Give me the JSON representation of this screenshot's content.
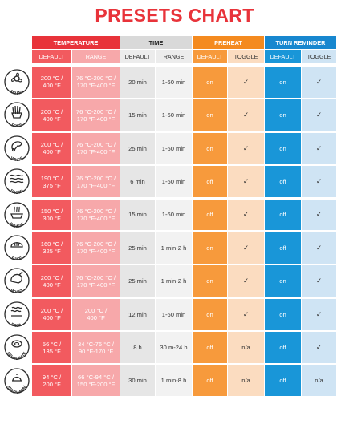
{
  "title": "PRESETS CHART",
  "colors": {
    "title": "#e8333a",
    "temp_header": "#e8333a",
    "temp_default": "#f25a5f",
    "temp_range": "#f7a8aa",
    "time_header": "#d9d9d9",
    "time_sub": "#ececec",
    "time_default": "#e6e6e6",
    "time_range": "#f2f2f2",
    "preheat_header": "#f48a1f",
    "preheat_default": "#f79a3c",
    "preheat_toggle": "#fbdcc0",
    "turn_header": "#1787cf",
    "turn_default": "#1996d8",
    "turn_toggle": "#cfe4f4",
    "icon": "#2a2a2a"
  },
  "headers": {
    "groups": [
      "TEMPERATURE",
      "TIME",
      "PREHEAT",
      "TURN REMINDER"
    ],
    "subs": [
      "DEFAULT",
      "RANGE",
      "DEFAULT",
      "RANGE",
      "DEFAULT",
      "TOGGLE",
      "DEFAULT",
      "TOGGLE"
    ]
  },
  "rows": [
    {
      "preset": "AIR FRY",
      "icon": "fan-icon",
      "temp_default": "200 °C /\n400 °F",
      "temp_range": "76 °C-200 °C /\n170 °F-400 °F",
      "time_default": "20 min",
      "time_range": "1-60 min",
      "preheat_default": "on",
      "preheat_toggle": "✓",
      "turn_default": "on",
      "turn_toggle": "✓"
    },
    {
      "preset": "FRIES",
      "icon": "fries-icon",
      "temp_default": "200 °C /\n400 °F",
      "temp_range": "76 °C-200 °C /\n170 °F-400 °F",
      "time_default": "15 min",
      "time_range": "1-60 min",
      "preheat_default": "on",
      "preheat_toggle": "✓",
      "turn_default": "on",
      "turn_toggle": "✓"
    },
    {
      "preset": "WINGS",
      "icon": "wings-icon",
      "temp_default": "200 °C /\n400 °F",
      "temp_range": "76 °C-200 °C /\n170 °F-400 °F",
      "time_default": "25 min",
      "time_range": "1-60 min",
      "preheat_default": "on",
      "preheat_toggle": "✓",
      "turn_default": "on",
      "turn_toggle": "✓"
    },
    {
      "preset": "BACON",
      "icon": "bacon-icon",
      "temp_default": "190 °C /\n375 °F",
      "temp_range": "76 °C-200 °C /\n170 °F-400 °F",
      "time_default": "6 min",
      "time_range": "1-60 min",
      "preheat_default": "off",
      "preheat_toggle": "✓",
      "turn_default": "off",
      "turn_toggle": "✓"
    },
    {
      "preset": "REHEAT",
      "icon": "reheat-icon",
      "temp_default": "150 °C /\n300 °F",
      "temp_range": "76 °C-200 °C /\n170 °F-400 °F",
      "time_default": "15 min",
      "time_range": "1-60 min",
      "preheat_default": "off",
      "preheat_toggle": "✓",
      "turn_default": "off",
      "turn_toggle": "✓"
    },
    {
      "preset": "BAKE",
      "icon": "bake-icon",
      "temp_default": "160 °C /\n325 °F",
      "temp_range": "76 °C-200 °C /\n170 °F-400 °F",
      "time_default": "25 min",
      "time_range": "1 min-2 h",
      "preheat_default": "on",
      "preheat_toggle": "✓",
      "turn_default": "off",
      "turn_toggle": "✓"
    },
    {
      "preset": "ROAST",
      "icon": "roast-icon",
      "temp_default": "200 °C /\n400 °F",
      "temp_range": "76 °C-200 °C /\n170 °F-400 °F",
      "time_default": "25 min",
      "time_range": "1 min-2 h",
      "preheat_default": "on",
      "preheat_toggle": "✓",
      "turn_default": "on",
      "turn_toggle": "✓"
    },
    {
      "preset": "BROIL",
      "icon": "broil-icon",
      "temp_default": "200 °C /\n400 °F",
      "temp_range": "200 °C /\n400 °F",
      "time_default": "12 min",
      "time_range": "1-60 min",
      "preheat_default": "on",
      "preheat_toggle": "✓",
      "turn_default": "on",
      "turn_toggle": "✓"
    },
    {
      "preset": "DEHYDRATE",
      "icon": "dehydrate-icon",
      "temp_default": "56 °C /\n135 °F",
      "temp_range": "34 °C-76 °C /\n90 °F-170 °F",
      "time_default": "8 h",
      "time_range": "30 m-24 h",
      "preheat_default": "off",
      "preheat_toggle": "n/a",
      "turn_default": "off",
      "turn_toggle": "✓"
    },
    {
      "preset": "KEEP WARM",
      "icon": "keep-warm-icon",
      "temp_default": "94 °C /\n200 °F",
      "temp_range": "66 °C-94 °C /\n150 °F-200 °F",
      "time_default": "30 min",
      "time_range": "1 min-8 h",
      "preheat_default": "off",
      "preheat_toggle": "n/a",
      "turn_default": "off",
      "turn_toggle": "n/a"
    }
  ]
}
